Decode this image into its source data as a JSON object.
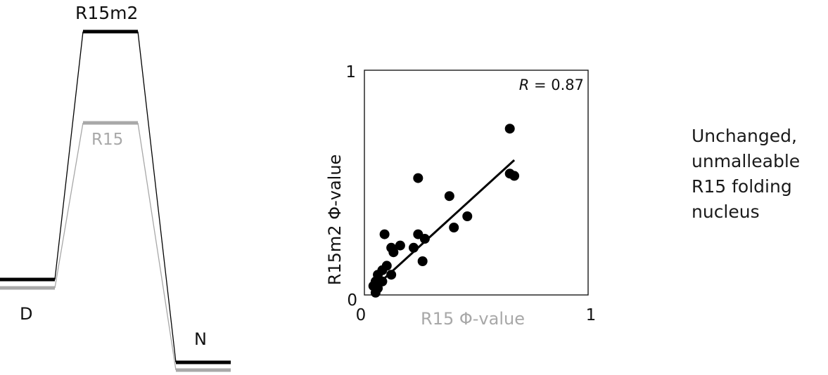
{
  "energy_diagram": {
    "state_labels": {
      "denatured": "D",
      "transition": "R15m2",
      "transition_ref": "R15",
      "native": "N"
    },
    "colors": {
      "r15m2": "#000000",
      "r15": "#a8a8a8"
    }
  },
  "chart_data": {
    "type": "scatter",
    "title": "",
    "xlabel": "R15 Φ-value",
    "ylabel": "R15m2 Φ-value",
    "xlim": [
      0,
      1
    ],
    "ylim": [
      0,
      1
    ],
    "x_ticks": [
      "0",
      "1"
    ],
    "y_ticks": [
      "0",
      "1"
    ],
    "annotation": {
      "italic": "R",
      "rest": " = 0.87"
    },
    "fit_line": {
      "x": [
        0.03,
        0.67
      ],
      "y": [
        0.02,
        0.6
      ]
    },
    "series": [
      {
        "color": "#000000",
        "points": [
          {
            "x": 0.65,
            "y": 0.74
          },
          {
            "x": 0.65,
            "y": 0.54
          },
          {
            "x": 0.67,
            "y": 0.53
          },
          {
            "x": 0.24,
            "y": 0.52
          },
          {
            "x": 0.38,
            "y": 0.44
          },
          {
            "x": 0.46,
            "y": 0.35
          },
          {
            "x": 0.4,
            "y": 0.3
          },
          {
            "x": 0.09,
            "y": 0.27
          },
          {
            "x": 0.24,
            "y": 0.27
          },
          {
            "x": 0.27,
            "y": 0.25
          },
          {
            "x": 0.16,
            "y": 0.22
          },
          {
            "x": 0.12,
            "y": 0.21
          },
          {
            "x": 0.13,
            "y": 0.19
          },
          {
            "x": 0.22,
            "y": 0.21
          },
          {
            "x": 0.26,
            "y": 0.15
          },
          {
            "x": 0.1,
            "y": 0.13
          },
          {
            "x": 0.08,
            "y": 0.11
          },
          {
            "x": 0.06,
            "y": 0.09
          },
          {
            "x": 0.12,
            "y": 0.09
          },
          {
            "x": 0.05,
            "y": 0.06
          },
          {
            "x": 0.08,
            "y": 0.06
          },
          {
            "x": 0.04,
            "y": 0.04
          },
          {
            "x": 0.06,
            "y": 0.03
          },
          {
            "x": 0.05,
            "y": 0.01
          }
        ]
      }
    ],
    "grid": false,
    "legend": "none"
  },
  "side_note": {
    "lines": [
      "Unchanged,",
      "unmalleable",
      "R15 folding",
      "nucleus"
    ]
  }
}
